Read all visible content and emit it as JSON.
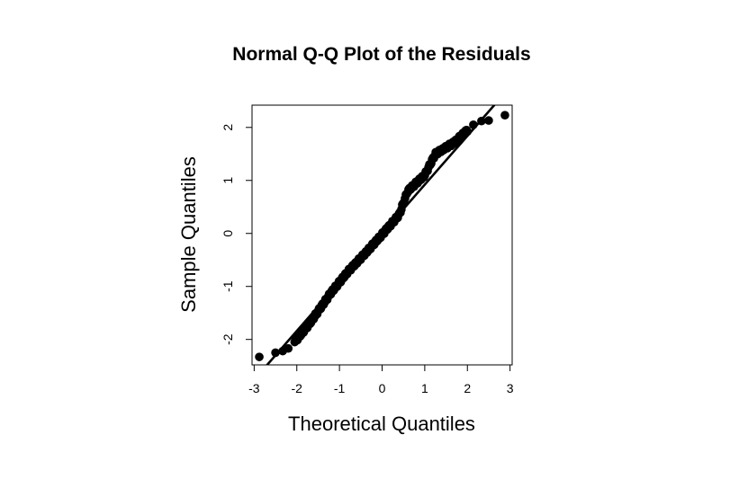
{
  "chart_data": {
    "type": "scatter",
    "title": "Normal Q-Q Plot of the Residuals",
    "xlabel": "Theoretical Quantiles",
    "ylabel": "Sample Quantiles",
    "xlim": [
      -3.05,
      3.05
    ],
    "ylim": [
      -2.48,
      2.42
    ],
    "xticks": [
      -3,
      -2,
      -1,
      0,
      1,
      2,
      3
    ],
    "yticks": [
      -2,
      -1,
      0,
      1,
      2
    ],
    "grid": false,
    "reference_line": {
      "slope": 0.92,
      "intercept": 0.0
    },
    "point_color": "#000000",
    "n_points": 200,
    "tail_points": [
      {
        "x": -2.88,
        "y": -2.33
      },
      {
        "x": -2.5,
        "y": -2.25
      },
      {
        "x": -2.33,
        "y": -2.22
      },
      {
        "x": -2.2,
        "y": -2.17
      },
      {
        "x": 2.14,
        "y": 2.05
      },
      {
        "x": 2.33,
        "y": 2.12
      },
      {
        "x": 2.5,
        "y": 2.13
      },
      {
        "x": 2.88,
        "y": 2.23
      }
    ],
    "body_curve": [
      {
        "x": -2.05,
        "y": -2.05
      },
      {
        "x": -1.7,
        "y": -1.7
      },
      {
        "x": -1.2,
        "y": -1.12
      },
      {
        "x": -0.8,
        "y": -0.72
      },
      {
        "x": -0.4,
        "y": -0.38
      },
      {
        "x": 0.0,
        "y": -0.02
      },
      {
        "x": 0.4,
        "y": 0.35
      },
      {
        "x": 0.6,
        "y": 0.8
      },
      {
        "x": 1.0,
        "y": 1.1
      },
      {
        "x": 1.25,
        "y": 1.5
      },
      {
        "x": 1.7,
        "y": 1.72
      },
      {
        "x": 2.0,
        "y": 1.95
      }
    ]
  }
}
